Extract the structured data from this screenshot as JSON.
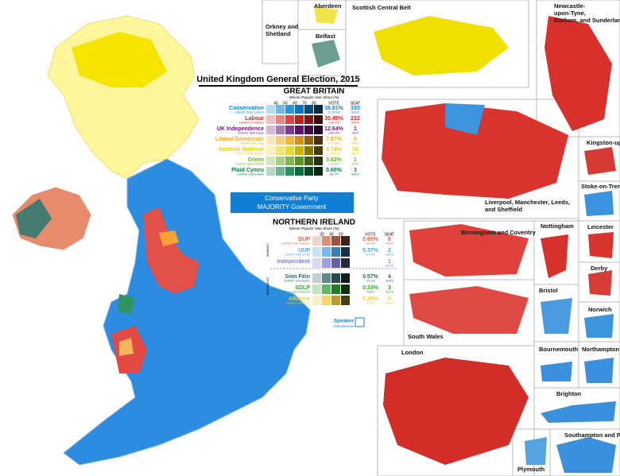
{
  "title": "United Kingdom General Election, 2015",
  "great_britain": {
    "heading": "GREAT BRITAIN",
    "scale_label": "Winner Popular Vote Share (%)",
    "scale_ticks": [
      40,
      50,
      60,
      70,
      80
    ],
    "vote_header": "VOTE",
    "seat_header": "SEAT",
    "parties": [
      {
        "name": "Conservative",
        "leader": "LEADER: David Cameron",
        "vote": "36.81%",
        "votes": "11,299,959",
        "seats": 330,
        "seats_label": "SEATS",
        "color": "#0087dc"
      },
      {
        "name": "Labour",
        "leader": "LEADER: Ed Miliband",
        "vote": "30.45%",
        "votes": "9,347,273",
        "seats": 232,
        "seats_label": "SEATS",
        "color": "#dc241f"
      },
      {
        "name": "UK Independence",
        "leader": "LEADER: Nigel Farage",
        "vote": "12.64%",
        "votes": "3,881,099",
        "seats": 1,
        "seats_label": "SEAT",
        "color": "#70147a"
      },
      {
        "name": "Liberal Democrats",
        "leader": "LEADER: Nick Clegg",
        "vote": "7.87%",
        "votes": "2,415,916",
        "seats": 8,
        "seats_label": "SEATS",
        "color": "#faa61a"
      },
      {
        "name": "Scottish National",
        "leader": "LEADER: Nicola Sturgeon",
        "vote": "4.74%",
        "votes": "1,454,436",
        "seats": 56,
        "seats_label": "SEATS",
        "color": "#e8d200"
      },
      {
        "name": "Green",
        "leader": "LEADER: Natalie Bennett",
        "vote": "3.62%",
        "votes": "1,111,603",
        "seats": 1,
        "seats_label": "SEAT",
        "color": "#6ab023"
      },
      {
        "name": "Plaid Cymru",
        "leader": "LEADER: Leanne Wood",
        "vote": "0.60%",
        "votes": "181,704",
        "seats": 3,
        "seats_label": "SEATS",
        "color": "#008142"
      }
    ]
  },
  "banner": {
    "line1": "Conservative Party",
    "line2": "MAJORITY Government"
  },
  "northern_ireland": {
    "heading": "NORTHERN IRELAND",
    "scale_label": "Winner Popular Vote Share (%)",
    "scale_ticks": [
      30,
      40,
      50
    ],
    "vote_header": "VOTE",
    "seat_header": "SEAT",
    "unionist_label": "UNIONIST",
    "nationalist_label": "NATIONALIST",
    "parties": [
      {
        "name": "DUP",
        "leader": "LEADER: Peter Robinson",
        "vote": "0.60%",
        "votes": "184,260",
        "seats": 8,
        "seats_label": "SEATS",
        "color": "#d46a4c"
      },
      {
        "name": "UUP",
        "leader": "LEADER: Mike Nesbitt",
        "vote": "0.37%",
        "votes": "114,935",
        "seats": 2,
        "seats_label": "SEATS",
        "color": "#48a5ee"
      },
      {
        "name": "Independent",
        "seats": 1,
        "seats_label": "SEATS",
        "color": "#8080e0"
      },
      {
        "name": "Sinn Féin",
        "leader": "LEADER: Gerry Adams",
        "vote": "0.57%",
        "votes": "176,232",
        "seats": 4,
        "seats_label": "SEATS",
        "color": "#326760"
      },
      {
        "name": "SDLP",
        "leader": "LEADER: Alasdair McDonnell",
        "vote": "0.33%",
        "votes": "99,809",
        "seats": 3,
        "seats_label": "SEATS",
        "color": "#2aa82c"
      },
      {
        "name": "Alliance",
        "leader": "LEADER: David Ford",
        "vote": "0.20%",
        "votes": "61,556",
        "seats": 0,
        "seats_label": "SEATS",
        "color": "#f6cb2f"
      }
    ]
  },
  "speaker": {
    "label": "Speaker",
    "name": "John Bercow"
  },
  "insets": [
    "Orkney and Shetland",
    "Aberdeen",
    "Scottish Central Belt",
    "Belfast",
    "Newcastle-upon-Tyne, Durham, and Sunderland",
    "Liverpool, Manchester, Leeds, and Sheffield",
    "Kingston-upon-Hull",
    "Stoke-on-Trent",
    "Birmingham and Coventry",
    "Nottingham",
    "Leicester",
    "Derby",
    "South Wales",
    "Bristol",
    "Norwich",
    "London",
    "Bournemouth",
    "Northampton",
    "Brighton",
    "Southampton and Portsmouth",
    "Plymouth"
  ]
}
